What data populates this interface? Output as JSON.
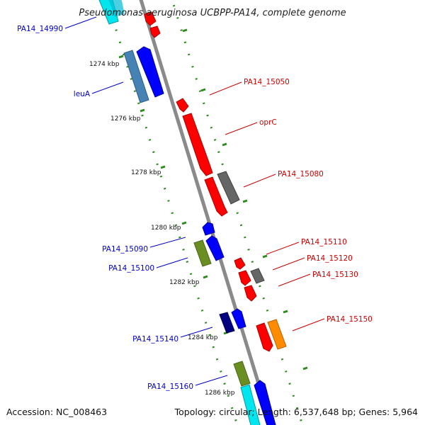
{
  "header": {
    "title": "Pseudomonas aeruginosa UCBPP-PA14, complete genome"
  },
  "footer": {
    "accession": "Accession: NC_008463",
    "summary": "Topology: circular; Length: 6,537,648 bp; Genes: 5,964"
  },
  "colors": {
    "forward_label": "#0000cc",
    "reverse_label": "#cc0000",
    "backbone": "#8a8a8a",
    "track_dots": "#2d8a1e",
    "blue": "#0000ff",
    "steelblue": "#4682b4",
    "olive": "#6b8e23",
    "navy": "#000080",
    "cyan": "#00e5ee",
    "red": "#ff0000",
    "gray": "#666666",
    "orange": "#ff8c00"
  },
  "ticks": [
    "1274 kbp",
    "1276 kbp",
    "1278 kbp",
    "1280 kbp",
    "1282 kbp",
    "1284 kbp",
    "1286 kbp"
  ],
  "labels_left": [
    "PA14_14990",
    "leuA",
    "PA14_15090",
    "PA14_15100",
    "PA14_15140",
    "PA14_15160"
  ],
  "labels_right": [
    "PA14_15050",
    "oprC",
    "PA14_15080",
    "PA14_15110",
    "PA14_15120",
    "PA14_15130",
    "PA14_15150"
  ]
}
